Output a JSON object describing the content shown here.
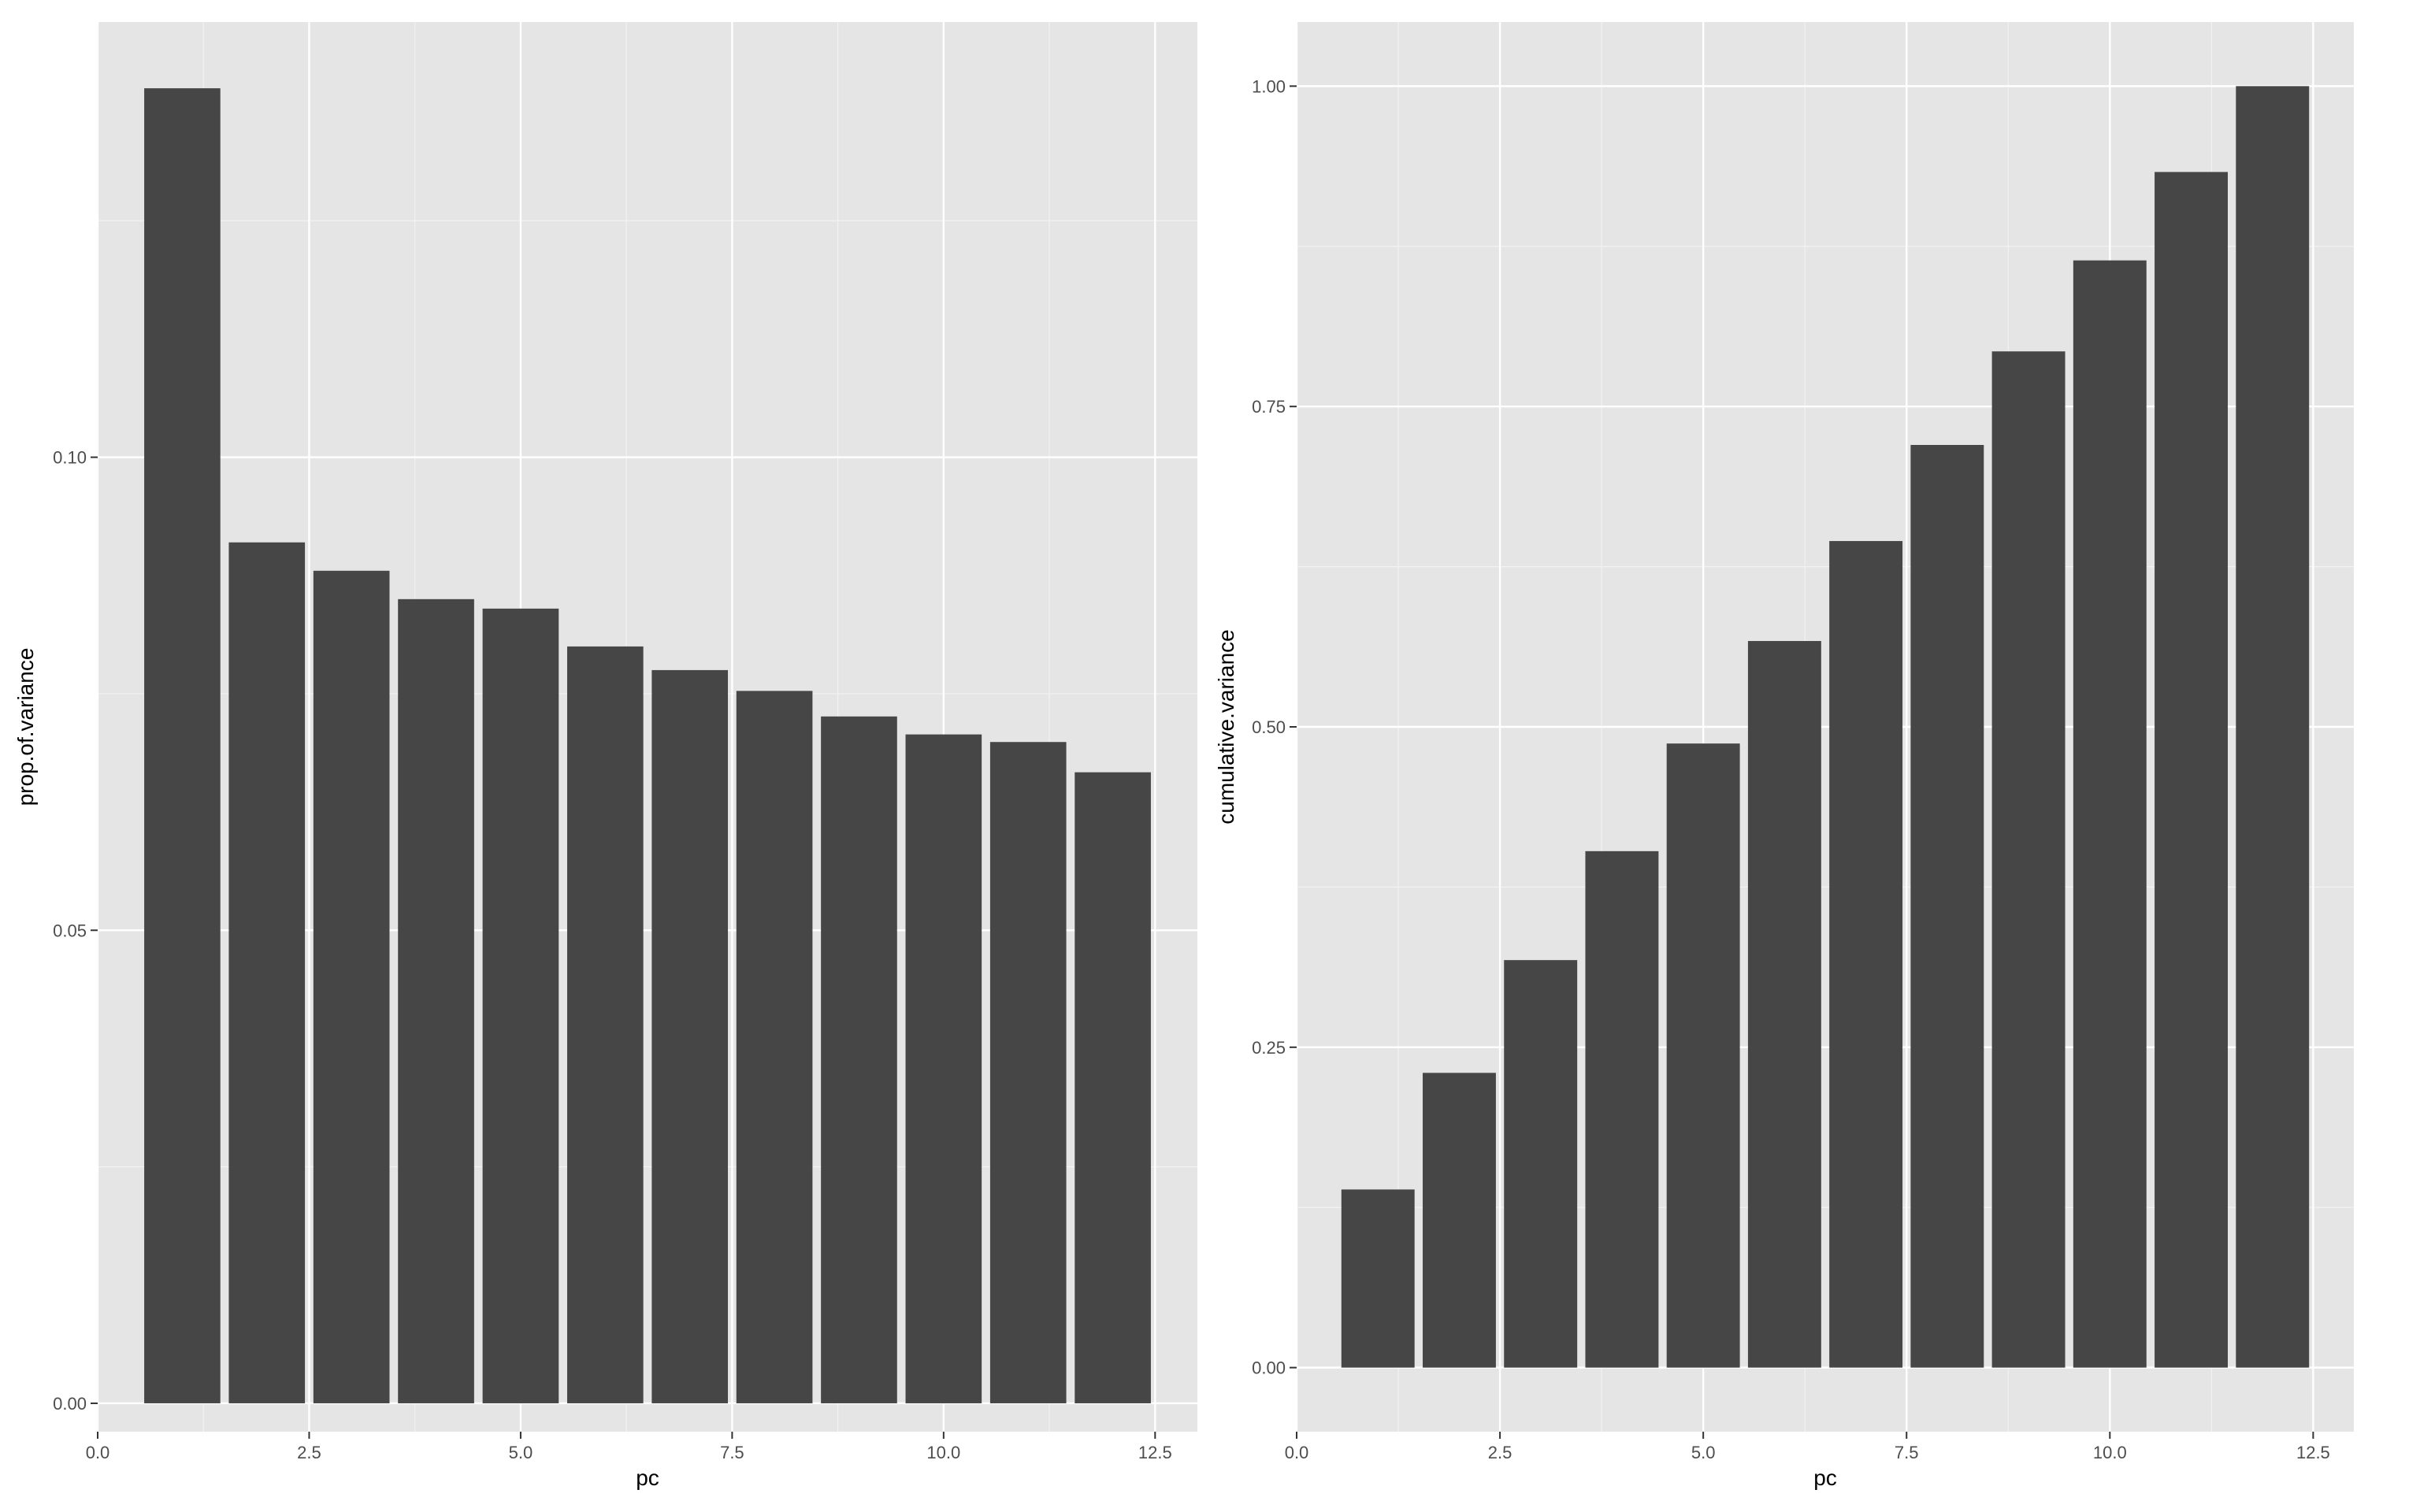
{
  "chart_data": [
    {
      "type": "bar",
      "xlabel": "pc",
      "ylabel": "prop.of.variance",
      "x": [
        1,
        2,
        3,
        4,
        5,
        6,
        7,
        8,
        9,
        10,
        11,
        12
      ],
      "values": [
        0.139,
        0.091,
        0.088,
        0.085,
        0.084,
        0.08,
        0.0775,
        0.0753,
        0.0726,
        0.0707,
        0.0699,
        0.0667
      ],
      "xlim": [
        0,
        13
      ],
      "ylim": [
        -0.003,
        0.146
      ],
      "x_ticks": [
        0.0,
        2.5,
        5.0,
        7.5,
        10.0,
        12.5
      ],
      "x_tick_labels": [
        "0.0",
        "2.5",
        "5.0",
        "7.5",
        "10.0",
        "12.5"
      ],
      "y_ticks": [
        0.0,
        0.05,
        0.1
      ],
      "y_tick_labels": [
        "0.00",
        "0.05",
        "0.10"
      ],
      "grid": true,
      "bar_color": "#464646",
      "panel_color": "#e5e5e5"
    },
    {
      "type": "bar",
      "xlabel": "pc",
      "ylabel": "cumulative.variance",
      "x": [
        1,
        2,
        3,
        4,
        5,
        6,
        7,
        8,
        9,
        10,
        11,
        12
      ],
      "values": [
        0.139,
        0.23,
        0.318,
        0.403,
        0.487,
        0.567,
        0.645,
        0.72,
        0.793,
        0.864,
        0.933,
        1.0
      ],
      "xlim": [
        0,
        13
      ],
      "ylim": [
        -0.05,
        1.05
      ],
      "x_ticks": [
        0.0,
        2.5,
        5.0,
        7.5,
        10.0,
        12.5
      ],
      "x_tick_labels": [
        "0.0",
        "2.5",
        "5.0",
        "7.5",
        "10.0",
        "12.5"
      ],
      "y_ticks": [
        0.0,
        0.25,
        0.5,
        0.75,
        1.0
      ],
      "y_tick_labels": [
        "0.00",
        "0.25",
        "0.50",
        "0.75",
        "1.00"
      ],
      "grid": true,
      "bar_color": "#464646",
      "panel_color": "#e5e5e5"
    }
  ]
}
